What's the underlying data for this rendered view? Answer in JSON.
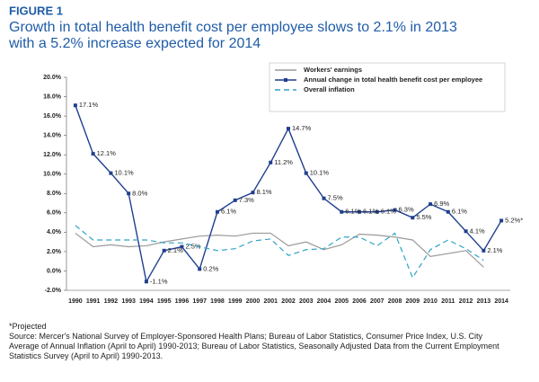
{
  "chart_data": {
    "type": "line",
    "figure_label": "FIGURE 1",
    "title_lines": [
      "Growth in total health benefit cost per employee slows to 2.1% in 2013",
      "with a 5.2% increase expected for 2014"
    ],
    "categories": [
      "1990",
      "1991",
      "1992",
      "1993",
      "1994",
      "1995",
      "1996",
      "1997",
      "1998",
      "1999",
      "2000",
      "2001",
      "2002",
      "2003",
      "2004",
      "2005",
      "2006",
      "2007",
      "2008",
      "2009",
      "2010",
      "2011",
      "2012",
      "2013",
      "2014"
    ],
    "series": [
      {
        "name": "Workers' earnings",
        "color": "#9a9a9a",
        "values": [
          3.9,
          2.5,
          2.7,
          2.5,
          2.6,
          3.0,
          3.3,
          3.6,
          3.7,
          3.6,
          3.9,
          3.9,
          2.6,
          3.0,
          2.2,
          2.7,
          3.8,
          3.7,
          3.5,
          3.2,
          1.5,
          1.8,
          2.1,
          0.4,
          null
        ]
      },
      {
        "name": "Annual change in total health benefit cost per employee",
        "color": "#1f3f8f",
        "markers": true,
        "values": [
          17.1,
          12.1,
          10.1,
          8.0,
          -1.1,
          2.1,
          2.5,
          0.2,
          6.1,
          7.3,
          8.1,
          11.2,
          14.7,
          10.1,
          7.5,
          6.1,
          6.1,
          6.1,
          6.3,
          5.5,
          6.9,
          6.1,
          4.1,
          2.1,
          5.2
        ],
        "value_labels": [
          "17.1%",
          "12.1%",
          "10.1%",
          "8.0%",
          "-1.1%",
          "2.1%",
          "2.5%",
          "0.2%",
          "6.1%",
          "7.3%",
          "8.1%",
          "11.2%",
          "14.7%",
          "10.1%",
          "7.5%",
          "6.1%",
          "6.1%",
          "6.1%",
          "6.3%",
          "5.5%",
          "6.9%",
          "6.1%",
          "4.1%",
          "2.1%",
          "5.2%*"
        ]
      },
      {
        "name": "Overall inflation",
        "color": "#2fa3c4",
        "dashed": true,
        "values": [
          4.7,
          3.2,
          3.2,
          3.2,
          3.2,
          2.9,
          2.9,
          2.5,
          2.1,
          2.3,
          3.1,
          3.3,
          1.6,
          2.2,
          2.3,
          3.5,
          3.5,
          2.6,
          3.9,
          -0.7,
          2.2,
          3.2,
          2.3,
          1.1,
          null
        ]
      }
    ],
    "ylim": [
      -2,
      20
    ],
    "yticks": [
      {
        "value": -2,
        "label": "-2.0%"
      },
      {
        "value": 0,
        "label": "0.0%"
      },
      {
        "value": 2,
        "label": "2.0%"
      },
      {
        "value": 4,
        "label": "4.0%"
      },
      {
        "value": 6,
        "label": "6.0%"
      },
      {
        "value": 8,
        "label": "8.0%"
      },
      {
        "value": 10,
        "label": "10.0%"
      },
      {
        "value": 12,
        "label": "12.0%"
      },
      {
        "value": 14,
        "label": "14.0%"
      },
      {
        "value": 16,
        "label": "16.0%"
      },
      {
        "value": 18,
        "label": "18.0%"
      },
      {
        "value": 20,
        "label": "20.0%"
      }
    ]
  },
  "notes": [
    "*Projected",
    "Source: Mercer's National Survey of Employer-Sponsored Health Plans; Bureau of Labor Statistics, Consumer Price Index, U.S. City Average of Annual Inflation (April to April) 1990-2013; Bureau of Labor Statistics, Seasonally Adjusted Data from the Current Employment Statistics Survey (April to April) 1990-2013."
  ]
}
